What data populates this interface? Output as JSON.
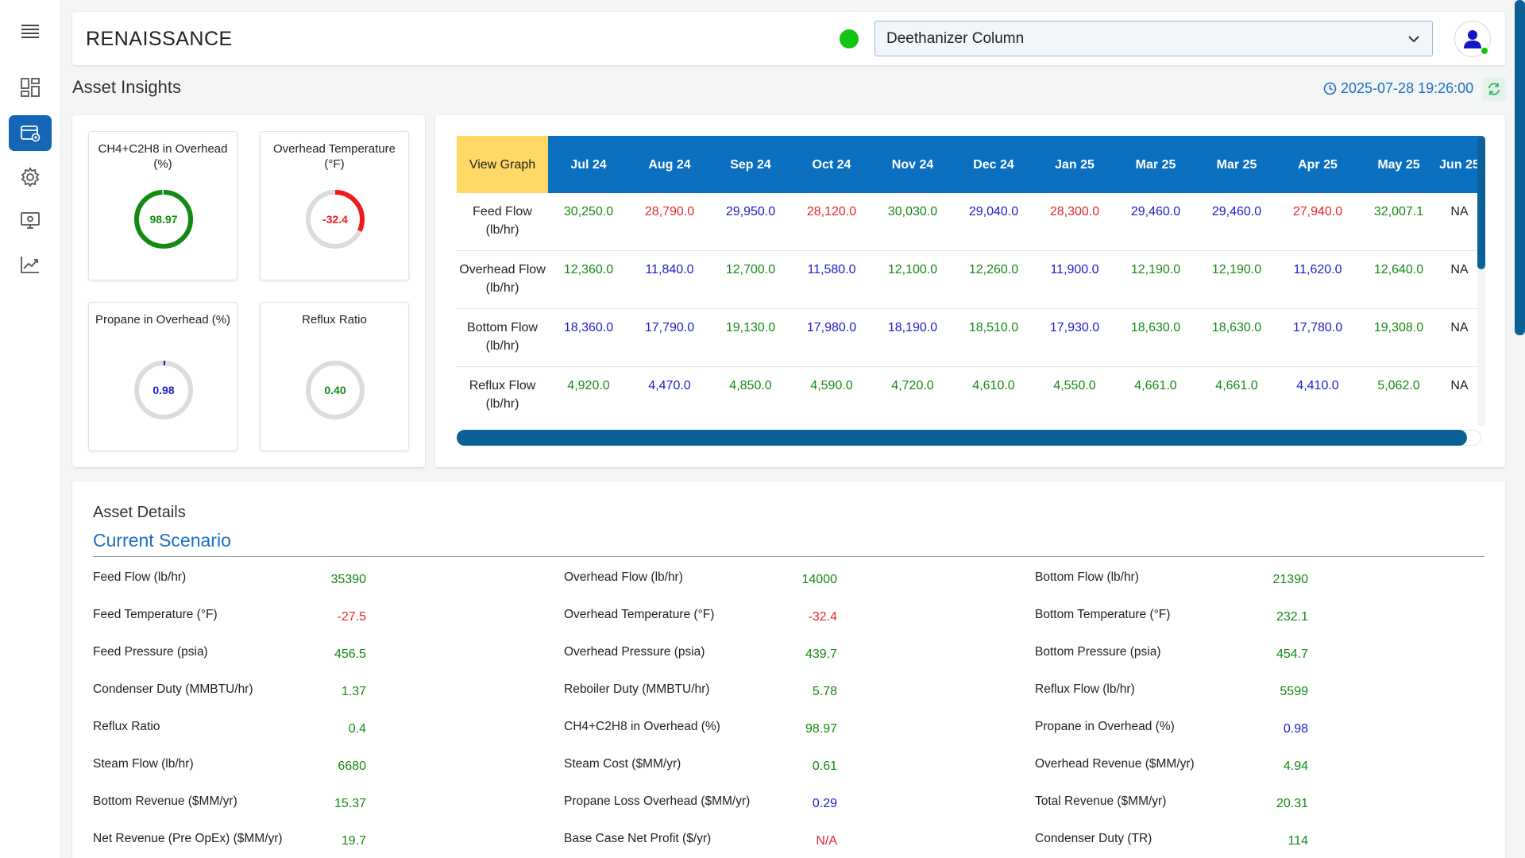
{
  "app": {
    "brand": "RENAISSANCE",
    "page_title": "Asset Insights",
    "timestamp": "2025-07-28 19:26:00"
  },
  "asset_select": {
    "value": "Deethanizer Column"
  },
  "sidebar": {
    "items": [
      {
        "icon": "menu-icon"
      },
      {
        "icon": "dashboard-icon"
      },
      {
        "icon": "asset-icon",
        "active": true
      },
      {
        "icon": "gear-icon"
      },
      {
        "icon": "monitor-icon"
      },
      {
        "icon": "trend-chart-icon"
      }
    ]
  },
  "colors": {
    "green": "#138a13",
    "red": "#e8262b",
    "blue": "#1c1ccc",
    "primary": "#0b6fc0",
    "highlight": "#ffd966"
  },
  "kpis": [
    {
      "title": "CH4+C2H8 in Overhead (%)",
      "value": "98.97",
      "fraction": 0.99,
      "color": "#138a13"
    },
    {
      "title": "Overhead Temperature (°F)",
      "value": "-32.4",
      "fraction": 0.32,
      "color": "#ee1c1c"
    },
    {
      "title": "Propane in Overhead (%)",
      "value": "0.98",
      "fraction": 0.01,
      "color": "#1c1ccc"
    },
    {
      "title": "Reflux Ratio",
      "value": "0.40",
      "fraction": 0.0,
      "color": "#138a13"
    }
  ],
  "table": {
    "view_graph_label": "View Graph",
    "columns": [
      "Jul 24",
      "Aug 24",
      "Sep 24",
      "Oct 24",
      "Nov 24",
      "Dec 24",
      "Jan 25",
      "Mar 25",
      "Mar 25",
      "Apr 25",
      "May 25",
      "Jun 25"
    ],
    "rows": [
      {
        "label": "Feed Flow (lb/hr)",
        "values": [
          "30,250.0",
          "28,790.0",
          "29,950.0",
          "28,120.0",
          "30,030.0",
          "29,040.0",
          "28,300.0",
          "29,460.0",
          "29,460.0",
          "27,940.0",
          "32,007.1",
          "NA"
        ],
        "colors": [
          "g",
          "r",
          "b",
          "r",
          "g",
          "b",
          "r",
          "b",
          "b",
          "r",
          "g",
          "k"
        ]
      },
      {
        "label": "Overhead Flow (lb/hr)",
        "values": [
          "12,360.0",
          "11,840.0",
          "12,700.0",
          "11,580.0",
          "12,100.0",
          "12,260.0",
          "11,900.0",
          "12,190.0",
          "12,190.0",
          "11,620.0",
          "12,640.0",
          "NA"
        ],
        "colors": [
          "g",
          "b",
          "g",
          "b",
          "g",
          "g",
          "b",
          "g",
          "g",
          "b",
          "g",
          "k"
        ]
      },
      {
        "label": "Bottom Flow (lb/hr)",
        "values": [
          "18,360.0",
          "17,790.0",
          "19,130.0",
          "17,980.0",
          "18,190.0",
          "18,510.0",
          "17,930.0",
          "18,630.0",
          "18,630.0",
          "17,780.0",
          "19,308.0",
          "NA"
        ],
        "colors": [
          "b",
          "b",
          "g",
          "b",
          "b",
          "g",
          "b",
          "g",
          "g",
          "b",
          "g",
          "k"
        ]
      },
      {
        "label": "Reflux Flow (lb/hr)",
        "values": [
          "4,920.0",
          "4,470.0",
          "4,850.0",
          "4,590.0",
          "4,720.0",
          "4,610.0",
          "4,550.0",
          "4,661.0",
          "4,661.0",
          "4,410.0",
          "5,062.0",
          "NA"
        ],
        "colors": [
          "g",
          "b",
          "g",
          "g",
          "g",
          "g",
          "g",
          "g",
          "g",
          "b",
          "g",
          "k"
        ]
      }
    ]
  },
  "details": {
    "title": "Asset Details",
    "scenario": "Current Scenario",
    "items": [
      {
        "label": "Feed Flow (lb/hr)",
        "value": "35390",
        "c": "g"
      },
      {
        "label": "Overhead Flow (lb/hr)",
        "value": "14000",
        "c": "g"
      },
      {
        "label": "Bottom Flow (lb/hr)",
        "value": "21390",
        "c": "g"
      },
      {
        "label": "Feed Temperature (°F)",
        "value": "-27.5",
        "c": "r"
      },
      {
        "label": "Overhead Temperature (°F)",
        "value": "-32.4",
        "c": "r"
      },
      {
        "label": "Bottom Temperature (°F)",
        "value": "232.1",
        "c": "g"
      },
      {
        "label": "Feed Pressure (psia)",
        "value": "456.5",
        "c": "g"
      },
      {
        "label": "Overhead Pressure (psia)",
        "value": "439.7",
        "c": "g"
      },
      {
        "label": "Bottom Pressure (psia)",
        "value": "454.7",
        "c": "g"
      },
      {
        "label": "Condenser Duty (MMBTU/hr)",
        "value": "1.37",
        "c": "g"
      },
      {
        "label": "Reboiler Duty (MMBTU/hr)",
        "value": "5.78",
        "c": "g"
      },
      {
        "label": "Reflux Flow (lb/hr)",
        "value": "5599",
        "c": "g"
      },
      {
        "label": "Reflux Ratio",
        "value": "0.4",
        "c": "g"
      },
      {
        "label": "CH4+C2H8 in Overhead (%)",
        "value": "98.97",
        "c": "g"
      },
      {
        "label": "Propane in Overhead (%)",
        "value": "0.98",
        "c": "b"
      },
      {
        "label": "Steam Flow (lb/hr)",
        "value": "6680",
        "c": "g"
      },
      {
        "label": "Steam Cost ($MM/yr)",
        "value": "0.61",
        "c": "g"
      },
      {
        "label": "Overhead Revenue ($MM/yr)",
        "value": "4.94",
        "c": "g"
      },
      {
        "label": "Bottom Revenue ($MM/yr)",
        "value": "15.37",
        "c": "g"
      },
      {
        "label": "Propane Loss Overhead ($MM/yr)",
        "value": "0.29",
        "c": "b"
      },
      {
        "label": "Total Revenue ($MM/yr)",
        "value": "20.31",
        "c": "g"
      },
      {
        "label": "Net Revenue (Pre OpEx) ($MM/yr)",
        "value": "19.7",
        "c": "g"
      },
      {
        "label": "Base Case Net Profit ($/yr)",
        "value": "N/A",
        "c": "r"
      },
      {
        "label": "Condenser Duty (TR)",
        "value": "114",
        "c": "g"
      }
    ]
  }
}
